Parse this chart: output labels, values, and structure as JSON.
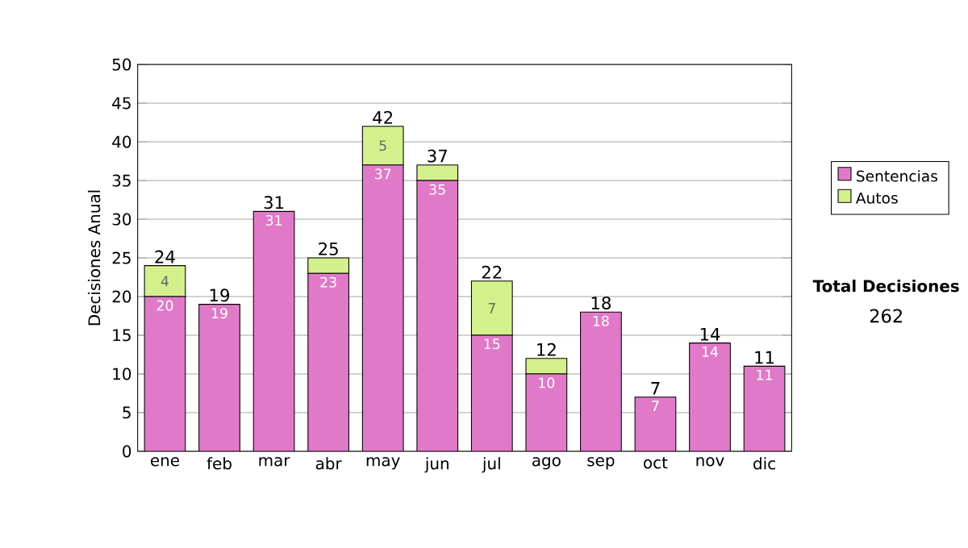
{
  "chart_data": {
    "type": "bar",
    "stacked": true,
    "ylabel": "Decisiones Anual",
    "categories": [
      "ene",
      "feb",
      "mar",
      "abr",
      "may",
      "jun",
      "jul",
      "ago",
      "sep",
      "oct",
      "nov",
      "dic"
    ],
    "series": [
      {
        "name": "Sentencias",
        "color": "#e07ac8",
        "values": [
          20,
          19,
          31,
          23,
          37,
          35,
          15,
          10,
          18,
          7,
          14,
          11
        ],
        "value_labels": [
          "20",
          "19",
          "31",
          "23",
          "37",
          "35",
          "15",
          "10",
          "18",
          "7",
          "14",
          "11"
        ]
      },
      {
        "name": "Autos",
        "color": "#d4f08c",
        "values": [
          4,
          0,
          0,
          2,
          5,
          2,
          7,
          2,
          0,
          0,
          0,
          0
        ],
        "value_labels": [
          "4",
          null,
          null,
          null,
          "5",
          null,
          "7",
          null,
          null,
          null,
          null,
          null
        ]
      }
    ],
    "totals": [
      "24",
      "19",
      "31",
      "25",
      "42",
      "37",
      "22",
      "12",
      "18",
      "7",
      "14",
      "11"
    ],
    "ylim": [
      0,
      50
    ],
    "yticks": [
      0,
      5,
      10,
      15,
      20,
      25,
      30,
      35,
      40,
      45,
      50
    ],
    "grid": "y",
    "legend": "right",
    "annotations": [
      "Total Decisiones",
      "262"
    ]
  }
}
